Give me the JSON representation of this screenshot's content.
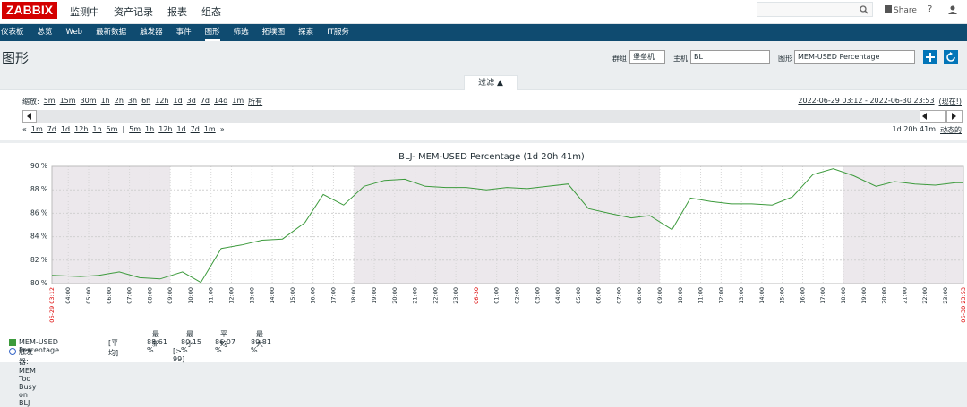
{
  "header": {
    "logo": "ZABBIX",
    "menu": [
      "监测中",
      "资产记录",
      "报表",
      "组态"
    ],
    "share": "Share",
    "help": "?"
  },
  "submenu": {
    "items": [
      "仪表板",
      "总览",
      "Web",
      "最新数据",
      "触发器",
      "事件",
      "图形",
      "筛选",
      "拓墣图",
      "探索",
      "IT服务"
    ],
    "active": 6
  },
  "page": {
    "title": "图形",
    "group_label": "群组",
    "group": "堡垒机",
    "host_label": "主机",
    "host": "BL",
    "graph_label": "图形",
    "graph": "MEM-USED Percentage"
  },
  "filter": {
    "tab": "过滤 ▲",
    "zoom_label": "缩放:",
    "zoom": [
      "5m",
      "15m",
      "30m",
      "1h",
      "2h",
      "3h",
      "6h",
      "12h",
      "1d",
      "3d",
      "7d",
      "14d",
      "1m",
      "所有"
    ],
    "range": "2022-06-29 03:12 - 2022-06-30 23:53",
    "now": "(现在!)",
    "back": "«",
    "back_steps": [
      "1m",
      "7d",
      "1d",
      "12h",
      "1h",
      "5m"
    ],
    "separator": "|",
    "fwd_steps": [
      "5m",
      "1h",
      "12h",
      "1d",
      "7d",
      "1m"
    ],
    "forward": "»",
    "period": "1d 20h 41m",
    "mode": "动态的"
  },
  "chart_data": {
    "type": "line",
    "title": "BLJ- MEM-USED Percentage (1d 20h 41m)",
    "x": [
      0,
      1.4,
      2.3,
      3.3,
      4.3,
      5.3,
      6.4,
      7.3,
      8.3,
      9.3,
      10.3,
      11.3,
      12.4,
      13.3,
      14.3,
      15.3,
      16.3,
      17.3,
      18.3,
      19.3,
      20.3,
      21.3,
      22.3,
      23.3,
      24.3,
      25.3,
      26.3,
      27.3,
      28.4,
      29.3,
      30.4,
      31.3,
      32.3,
      33.3,
      34.3,
      35.3,
      36.3,
      37.3,
      38.3,
      39.3,
      40.4,
      41.3,
      42.3,
      43.3,
      44.3,
      44.68
    ],
    "series": [
      {
        "name": "MEM-USED Percentage",
        "color": "#3c9a3c",
        "values": [
          80.7,
          80.6,
          80.7,
          81.0,
          80.5,
          80.4,
          81.0,
          80.1,
          83.0,
          83.3,
          83.7,
          83.8,
          85.2,
          87.6,
          86.7,
          88.3,
          88.8,
          88.9,
          88.3,
          88.2,
          88.2,
          88.0,
          88.2,
          88.1,
          88.3,
          88.5,
          86.4,
          86.0,
          85.6,
          85.8,
          84.6,
          87.3,
          87.0,
          86.8,
          86.8,
          86.7,
          87.4,
          89.3,
          89.8,
          89.2,
          88.3,
          88.7,
          88.5,
          88.4,
          88.6,
          88.6
        ]
      }
    ],
    "shaded": [
      [
        0,
        5.8
      ],
      [
        14.8,
        29.8
      ],
      [
        38.8,
        44.68
      ]
    ],
    "shade_color": "#ece8ec",
    "xlim": [
      0,
      44.68
    ],
    "xticks": [
      {
        "value": 0,
        "label": "06-29 03:12",
        "color": "#dc0000"
      },
      {
        "value": 0.8,
        "label": "04:00"
      },
      {
        "value": 1.8,
        "label": "05:00"
      },
      {
        "value": 2.8,
        "label": "06:00"
      },
      {
        "value": 3.8,
        "label": "07:00"
      },
      {
        "value": 4.8,
        "label": "08:00"
      },
      {
        "value": 5.8,
        "label": "09:00"
      },
      {
        "value": 6.8,
        "label": "10:00"
      },
      {
        "value": 7.8,
        "label": "11:00"
      },
      {
        "value": 8.8,
        "label": "12:00"
      },
      {
        "value": 9.8,
        "label": "13:00"
      },
      {
        "value": 10.8,
        "label": "14:00"
      },
      {
        "value": 11.8,
        "label": "15:00"
      },
      {
        "value": 12.8,
        "label": "16:00"
      },
      {
        "value": 13.8,
        "label": "17:00"
      },
      {
        "value": 14.8,
        "label": "18:00"
      },
      {
        "value": 15.8,
        "label": "19:00"
      },
      {
        "value": 16.8,
        "label": "20:00"
      },
      {
        "value": 17.8,
        "label": "21:00"
      },
      {
        "value": 18.8,
        "label": "22:00"
      },
      {
        "value": 19.8,
        "label": "23:00"
      },
      {
        "value": 20.8,
        "label": "06-30",
        "color": "#dc0000"
      },
      {
        "value": 21.8,
        "label": "01:00"
      },
      {
        "value": 22.8,
        "label": "02:00"
      },
      {
        "value": 23.8,
        "label": "03:00"
      },
      {
        "value": 24.8,
        "label": "04:00"
      },
      {
        "value": 25.8,
        "label": "05:00"
      },
      {
        "value": 26.8,
        "label": "06:00"
      },
      {
        "value": 27.8,
        "label": "07:00"
      },
      {
        "value": 28.8,
        "label": "08:00"
      },
      {
        "value": 29.8,
        "label": "09:00"
      },
      {
        "value": 30.8,
        "label": "10:00"
      },
      {
        "value": 31.8,
        "label": "11:00"
      },
      {
        "value": 32.8,
        "label": "12:00"
      },
      {
        "value": 33.8,
        "label": "13:00"
      },
      {
        "value": 34.8,
        "label": "14:00"
      },
      {
        "value": 35.8,
        "label": "15:00"
      },
      {
        "value": 36.8,
        "label": "16:00"
      },
      {
        "value": 37.8,
        "label": "17:00"
      },
      {
        "value": 38.8,
        "label": "18:00"
      },
      {
        "value": 39.8,
        "label": "19:00"
      },
      {
        "value": 40.8,
        "label": "20:00"
      },
      {
        "value": 41.8,
        "label": "21:00"
      },
      {
        "value": 42.8,
        "label": "22:00"
      },
      {
        "value": 43.8,
        "label": "23:00"
      },
      {
        "value": 44.68,
        "label": "06-30 23:53",
        "color": "#dc0000"
      }
    ],
    "ylim": [
      80,
      90
    ],
    "yticks": [
      {
        "value": 80,
        "label": "80 %"
      },
      {
        "value": 82,
        "label": "82 %"
      },
      {
        "value": 84,
        "label": "84 %"
      },
      {
        "value": 86,
        "label": "86 %"
      },
      {
        "value": 88,
        "label": "88 %"
      },
      {
        "value": 90,
        "label": "90 %"
      }
    ],
    "grid": true
  },
  "legend": {
    "headers": [
      "最新",
      "最小",
      "平均",
      "最大"
    ],
    "func": "[平均]",
    "values": [
      "88.61 %",
      "80.15 %",
      "86.07 %",
      "89.81 %"
    ],
    "trigger": "触发器: MEM Too Busy on BLJ",
    "trigger_condition": "[> 99]"
  }
}
